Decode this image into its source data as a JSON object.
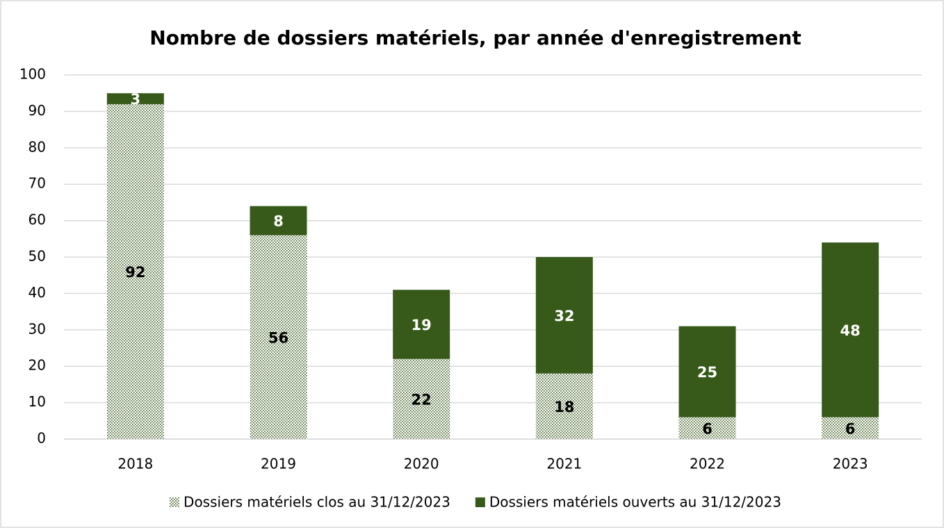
{
  "chart_data": {
    "type": "stacked_bar",
    "title": "Nombre de dossiers matériels, par année d'enregistrement",
    "categories": [
      "2018",
      "2019",
      "2020",
      "2021",
      "2022",
      "2023"
    ],
    "series": [
      {
        "name": "Dossiers matériels clos au 31/12/2023",
        "color": "#375a1a",
        "pattern": "dotted",
        "values": [
          92,
          56,
          22,
          18,
          6,
          6
        ]
      },
      {
        "name": "Dossiers matériels ouverts au 31/12/2023",
        "color": "#375a1a",
        "values": [
          3,
          8,
          19,
          32,
          25,
          48
        ]
      }
    ],
    "ylim": [
      0,
      100
    ],
    "yticks": [
      0,
      10,
      20,
      30,
      40,
      50,
      60,
      70,
      80,
      90,
      100
    ],
    "grid": true,
    "legend": "bottom"
  }
}
